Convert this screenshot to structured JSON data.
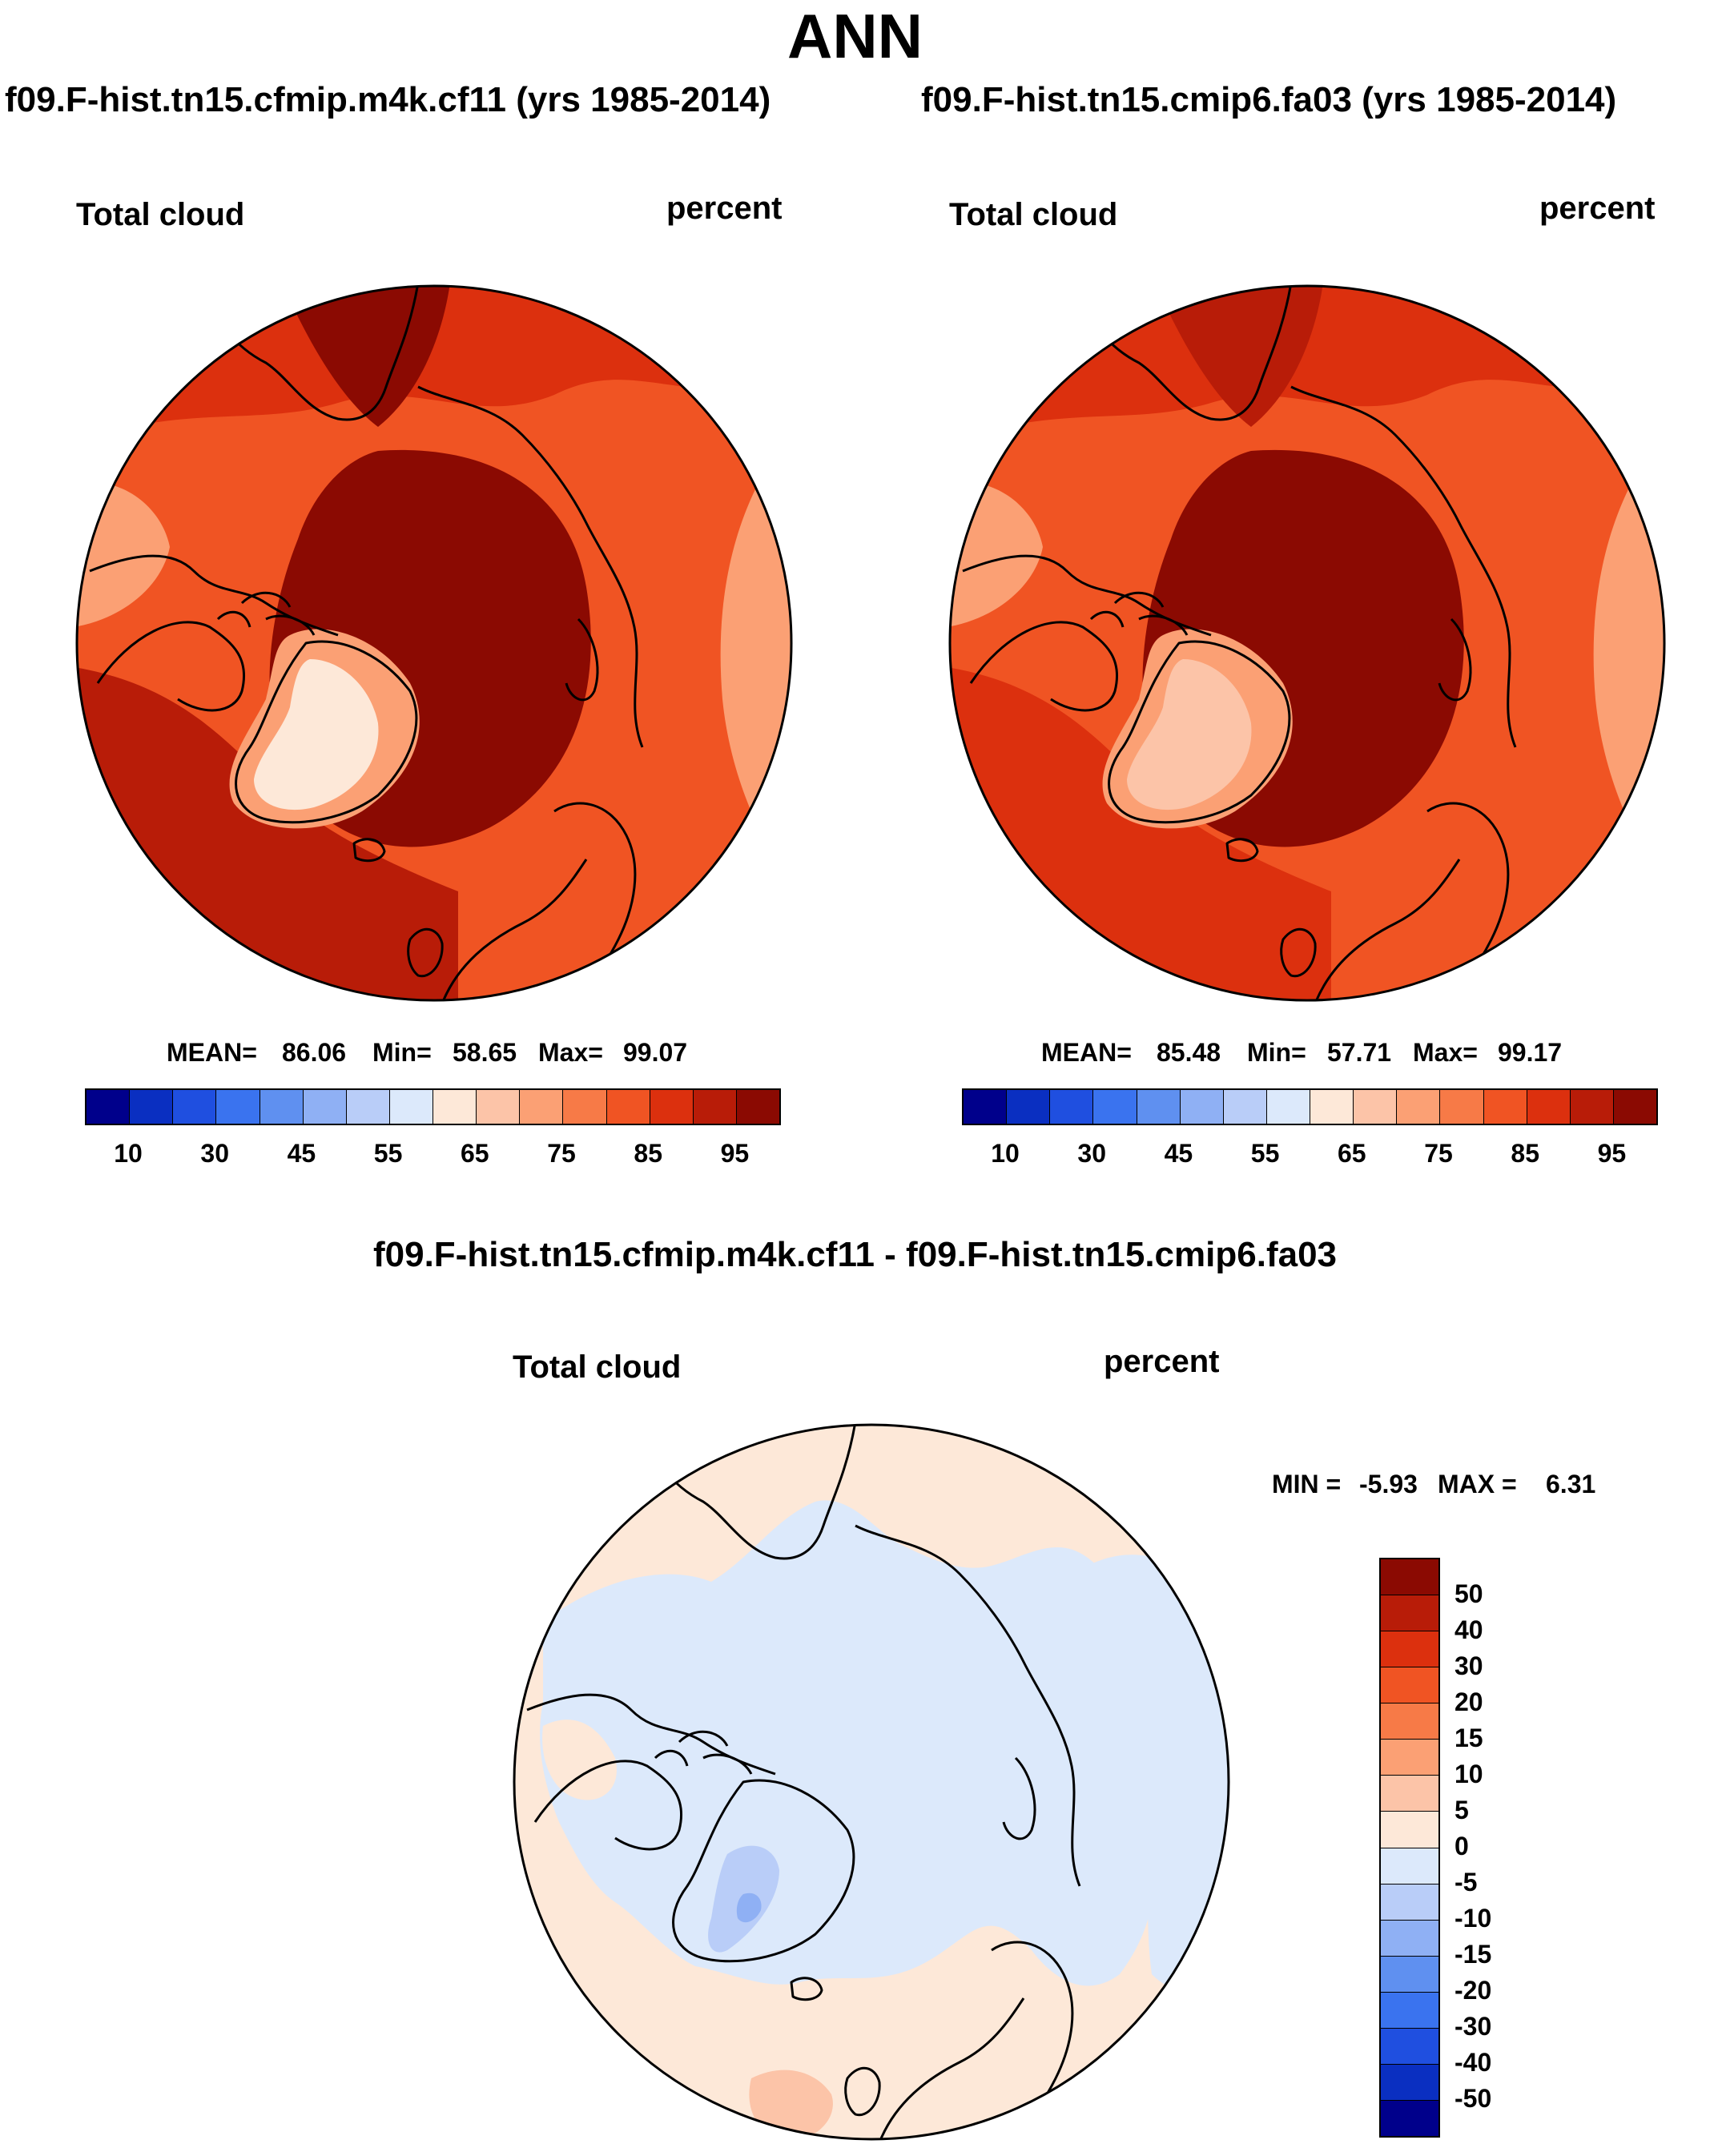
{
  "page_title": "ANN",
  "panels": [
    {
      "case": "f09.F-hist.tn15.cfmip.m4k.cf11 (yrs 1985-2014)",
      "variable": "Total cloud",
      "units": "percent",
      "stats": {
        "mean_label": "MEAN=",
        "mean": "86.06",
        "min_label": "Min=",
        "min": "58.65",
        "max_label": "Max=",
        "max": "99.07"
      }
    },
    {
      "case": "f09.F-hist.tn15.cmip6.fa03 (yrs 1985-2014)",
      "variable": "Total cloud",
      "units": "percent",
      "stats": {
        "mean_label": "MEAN=",
        "mean": "85.48",
        "min_label": "Min=",
        "min": "57.71",
        "max_label": "Max=",
        "max": "99.17"
      }
    }
  ],
  "abs_colorbar": {
    "colors": [
      "#00008b",
      "#0a2fc1",
      "#1f4fe0",
      "#3a73ef",
      "#5f90f0",
      "#8fb0f4",
      "#b9cdf8",
      "#dce9fb",
      "#fde8d8",
      "#fcc4a8",
      "#fba074",
      "#f77a47",
      "#f05423",
      "#dc300e",
      "#b81c08",
      "#8b0a02"
    ],
    "tick_labels": [
      "10",
      "30",
      "45",
      "55",
      "65",
      "75",
      "85",
      "95"
    ]
  },
  "diff_panel": {
    "title": "f09.F-hist.tn15.cfmip.m4k.cf11 - f09.F-hist.tn15.cmip6.fa03",
    "variable": "Total cloud",
    "units": "percent",
    "stats": {
      "min_label": "MIN =",
      "min": "-5.93",
      "max_label": "MAX =",
      "max": "6.31"
    }
  },
  "diff_colorbar": {
    "colors_top_to_bottom": [
      "#8b0a02",
      "#b81c08",
      "#dc300e",
      "#f05423",
      "#f77a47",
      "#fba074",
      "#fcc4a8",
      "#fde8d8",
      "#dce9fb",
      "#b9cdf8",
      "#8fb0f4",
      "#5f90f0",
      "#3a73ef",
      "#1f4fe0",
      "#0a2fc1",
      "#00008b"
    ],
    "tick_labels": [
      "50",
      "40",
      "30",
      "20",
      "15",
      "10",
      "5",
      "0",
      "-5",
      "-10",
      "-15",
      "-20",
      "-30",
      "-40",
      "-50"
    ]
  }
}
